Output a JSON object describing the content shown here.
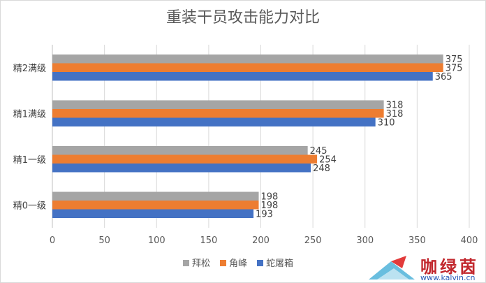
{
  "chart_data": {
    "type": "bar",
    "orientation": "horizontal",
    "title": "重装干员攻击能力对比",
    "categories": [
      "精0一级",
      "精1一级",
      "精1满级",
      "精2满级"
    ],
    "series": [
      {
        "name": "拜松",
        "color": "#a5a5a5",
        "values": [
          198,
          245,
          318,
          375
        ]
      },
      {
        "name": "角峰",
        "color": "#ed7d31",
        "values": [
          198,
          254,
          318,
          375
        ]
      },
      {
        "name": "蛇屠箱",
        "color": "#4472c4",
        "values": [
          193,
          248,
          310,
          365
        ]
      }
    ],
    "xlim": [
      0,
      400
    ],
    "xticks": [
      0,
      50,
      100,
      150,
      200,
      250,
      300,
      350,
      400
    ],
    "grid": true,
    "legend": "bottom",
    "data_labels": true
  },
  "watermark": {
    "name": "咖绿茵",
    "url": "www.kalvin.cn"
  }
}
